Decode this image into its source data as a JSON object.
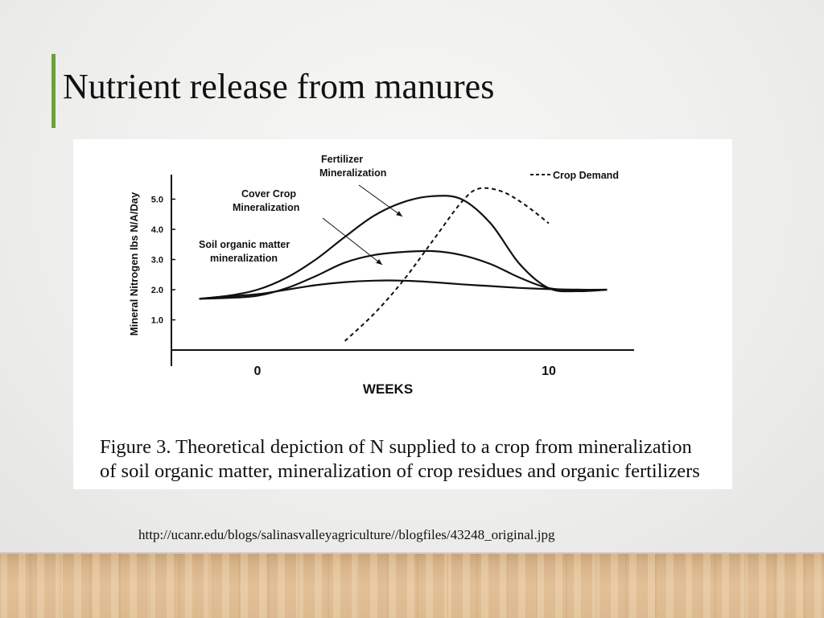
{
  "slide": {
    "title": "Nutrient release from manures",
    "source_url": "http://ucanr.edu/blogs/salinasvalleyagriculture//blogfiles/43248_original.jpg",
    "accent_color": "#6aa33a"
  },
  "figure": {
    "caption_line_1": "Figure 3. Theoretical depiction of N supplied to a crop from mineralization",
    "caption_line_2": "of soil organic matter, mineralization of crop residues and organic fertilizers"
  },
  "chart_data": {
    "type": "line",
    "xlabel": "WEEKS",
    "ylabel": "Mineral Nitrogen lbs N/A/Day",
    "x_ticks": [
      {
        "value": 0,
        "label": "0"
      },
      {
        "value": 10,
        "label": "10"
      }
    ],
    "y_ticks": [
      {
        "value": 1.0,
        "label": "1.0"
      },
      {
        "value": 2.0,
        "label": "2.0"
      },
      {
        "value": 3.0,
        "label": "3.0"
      },
      {
        "value": 4.0,
        "label": "4.0"
      },
      {
        "value": 5.0,
        "label": "5.0"
      }
    ],
    "xlim": [
      -3,
      12
    ],
    "ylim": [
      0,
      6
    ],
    "grid": false,
    "legend": {
      "label": "Crop Demand",
      "style": "dashed",
      "placement": "top-right"
    },
    "series": [
      {
        "name": "Soil organic matter mineralization",
        "style": "solid",
        "points": [
          [
            -2.0,
            1.7
          ],
          [
            -1.0,
            1.78
          ],
          [
            0,
            1.85
          ],
          [
            1,
            2.0
          ],
          [
            2,
            2.15
          ],
          [
            3,
            2.25
          ],
          [
            4,
            2.3
          ],
          [
            5,
            2.3
          ],
          [
            6,
            2.25
          ],
          [
            7,
            2.18
          ],
          [
            8,
            2.12
          ],
          [
            9,
            2.06
          ],
          [
            10,
            2.02
          ],
          [
            11,
            2.0
          ],
          [
            12,
            2.0
          ]
        ]
      },
      {
        "name": "Cover Crop Mineralization",
        "style": "solid",
        "points": [
          [
            -2.0,
            1.7
          ],
          [
            -1.0,
            1.73
          ],
          [
            0,
            1.8
          ],
          [
            1,
            2.05
          ],
          [
            2,
            2.45
          ],
          [
            3,
            2.9
          ],
          [
            4,
            3.15
          ],
          [
            5,
            3.25
          ],
          [
            6,
            3.28
          ],
          [
            7,
            3.15
          ],
          [
            8,
            2.85
          ],
          [
            9,
            2.4
          ],
          [
            10,
            2.05
          ],
          [
            11,
            2.0
          ],
          [
            12,
            2.0
          ]
        ]
      },
      {
        "name": "Fertilizer Mineralization",
        "style": "solid",
        "points": [
          [
            -2.0,
            1.7
          ],
          [
            -1.0,
            1.8
          ],
          [
            0,
            2.0
          ],
          [
            1,
            2.4
          ],
          [
            2,
            3.0
          ],
          [
            3,
            3.75
          ],
          [
            4,
            4.45
          ],
          [
            5,
            4.9
          ],
          [
            6,
            5.1
          ],
          [
            7,
            5.0
          ],
          [
            8,
            4.2
          ],
          [
            9,
            2.85
          ],
          [
            10,
            2.05
          ],
          [
            11,
            1.95
          ],
          [
            12,
            2.0
          ]
        ]
      },
      {
        "name": "Crop Demand",
        "style": "dashed",
        "points": [
          [
            3.0,
            0.3
          ],
          [
            4.0,
            1.2
          ],
          [
            5.0,
            2.3
          ],
          [
            6.0,
            3.6
          ],
          [
            7.0,
            4.9
          ],
          [
            7.6,
            5.35
          ],
          [
            8.4,
            5.25
          ],
          [
            9.2,
            4.8
          ],
          [
            10.0,
            4.2
          ]
        ]
      }
    ],
    "annotations": [
      {
        "text_lines": [
          "Fertilizer",
          "Mineralization"
        ],
        "points_to": "Fertilizer Mineralization"
      },
      {
        "text_lines": [
          "Cover Crop",
          "Mineralization"
        ],
        "points_to": "Cover Crop Mineralization"
      },
      {
        "text_lines": [
          "Soil organic matter",
          "mineralization"
        ],
        "points_to": "Soil organic matter mineralization"
      }
    ]
  }
}
